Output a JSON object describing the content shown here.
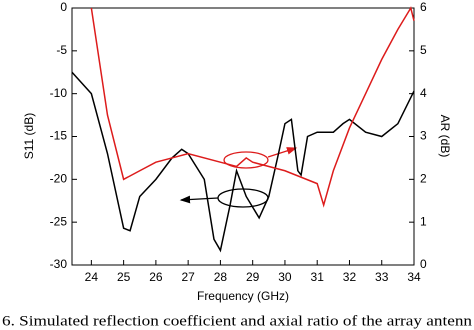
{
  "chart_data": {
    "type": "line",
    "xlabel": "Frequency (GHz)",
    "ylabel": "S11 (dB)",
    "y2label": "AR (dB)",
    "caption": "6.   Simulated reflection coefficient and axial ratio of the array antenn",
    "xlim": [
      23.4,
      34
    ],
    "xticks": [
      24,
      25,
      26,
      27,
      28,
      29,
      30,
      31,
      32,
      33,
      34
    ],
    "ylim": [
      -30,
      0
    ],
    "yticks": [
      0,
      -5,
      -10,
      -15,
      -20,
      -25,
      -30
    ],
    "y2lim": [
      0,
      6
    ],
    "y2ticks": [
      0,
      1,
      2,
      3,
      4,
      5,
      6
    ],
    "series": [
      {
        "color": "#000000",
        "x": [
          23.4,
          24,
          24.5,
          25,
          25.2,
          25.5,
          26,
          26.5,
          26.8,
          27,
          27.5,
          27.8,
          28,
          28.3,
          28.5,
          28.8,
          29.2,
          29.5,
          29.8,
          30,
          30.2,
          30.4,
          30.5,
          30.7,
          31,
          31.5,
          31.8,
          32,
          32.5,
          33,
          33.5,
          34
        ],
        "values": [
          -7.5,
          -10,
          -17,
          -25.7,
          -26,
          -22,
          -20,
          -17.5,
          -16.5,
          -17,
          -20,
          -27,
          -28.3,
          -23,
          -19,
          -22,
          -24.5,
          -22,
          -17,
          -13.5,
          -13,
          -19,
          -19.5,
          -15,
          -14.5,
          -14.5,
          -13.5,
          -13,
          -14.5,
          -15,
          -13.5,
          -9.7
        ]
      },
      {
        "color": "#dd1c1c",
        "axis": "y2",
        "x": [
          24,
          24.5,
          25,
          25.5,
          26,
          26.5,
          27,
          28,
          28.5,
          28.8,
          29,
          30,
          31,
          31.2,
          31.5,
          32,
          32.5,
          33,
          33.5,
          33.9,
          34
        ],
        "values": [
          6,
          3.5,
          2.0,
          2.2,
          2.4,
          2.5,
          2.6,
          2.4,
          2.3,
          2.5,
          2.4,
          2.2,
          1.9,
          1.4,
          2.2,
          3.2,
          4.0,
          4.8,
          5.5,
          6,
          5.7
        ]
      }
    ]
  }
}
